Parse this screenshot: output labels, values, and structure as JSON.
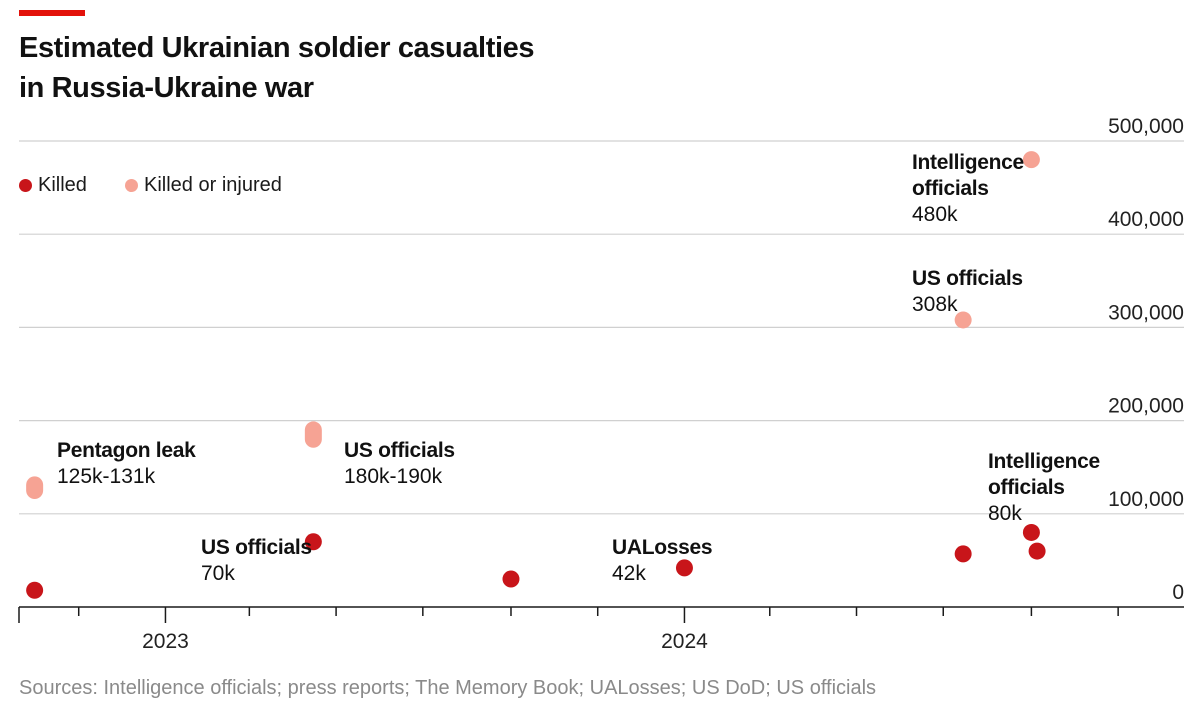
{
  "colors": {
    "accent": "#e3120b",
    "killed": "#c8151a",
    "killed_or_injured": "#f6a394",
    "grid": "#d0d0d0",
    "axis": "#1a1a1a"
  },
  "title_lines": [
    "Estimated Ukrainian soldier casualties",
    "in Russia-Ukraine war"
  ],
  "source": "Sources: Intelligence officials; press reports; The Memory Book; UALosses; US DoD; US officials",
  "chart_data": {
    "type": "scatter",
    "title": "Estimated Ukrainian soldier casualties in Russia-Ukraine war",
    "xlabel": "",
    "ylabel": "",
    "xlim": [
      "2022-09-20",
      "2024-12-31"
    ],
    "ylim": [
      0,
      500000
    ],
    "yticks": [
      0,
      100000,
      200000,
      300000,
      400000,
      500000
    ],
    "ytick_labels": [
      "0",
      "100,000",
      "200,000",
      "300,000",
      "400,000",
      "500,000"
    ],
    "xtick_labels": [
      {
        "date": "2023-01-01",
        "label": "2023"
      },
      {
        "date": "2024-01-01",
        "label": "2024"
      }
    ],
    "grid": true,
    "legend": {
      "position": "top-left",
      "entries": [
        {
          "name": "Killed",
          "color": "#c8151a"
        },
        {
          "name": "Killed or injured",
          "color": "#f6a394"
        }
      ]
    },
    "series": [
      {
        "name": "Killed",
        "points": [
          {
            "x": "2022-10-01",
            "y": 18000
          },
          {
            "x": "2023-04-15",
            "y": 70000,
            "label": "US officials",
            "value_label": "70k"
          },
          {
            "x": "2023-09-01",
            "y": 30000
          },
          {
            "x": "2024-01-01",
            "y": 42000,
            "label": "UALosses",
            "value_label": "42k"
          },
          {
            "x": "2024-07-15",
            "y": 57000
          },
          {
            "x": "2024-09-01",
            "y": 80000,
            "label": "Intelligence officials",
            "value_label": "80k"
          },
          {
            "x": "2024-09-05",
            "y": 60000
          }
        ]
      },
      {
        "name": "Killed or injured",
        "points": [
          {
            "x": "2022-10-01",
            "y_low": 125000,
            "y_high": 131000,
            "label": "Pentagon leak",
            "value_label": "125k-131k"
          },
          {
            "x": "2023-04-15",
            "y_low": 180000,
            "y_high": 190000,
            "label": "US officials",
            "value_label": "180k-190k"
          },
          {
            "x": "2024-07-15",
            "y": 308000,
            "label": "US officials",
            "value_label": "308k"
          },
          {
            "x": "2024-09-01",
            "y": 480000,
            "label": "Intelligence officials",
            "value_label": "480k"
          }
        ]
      }
    ]
  }
}
